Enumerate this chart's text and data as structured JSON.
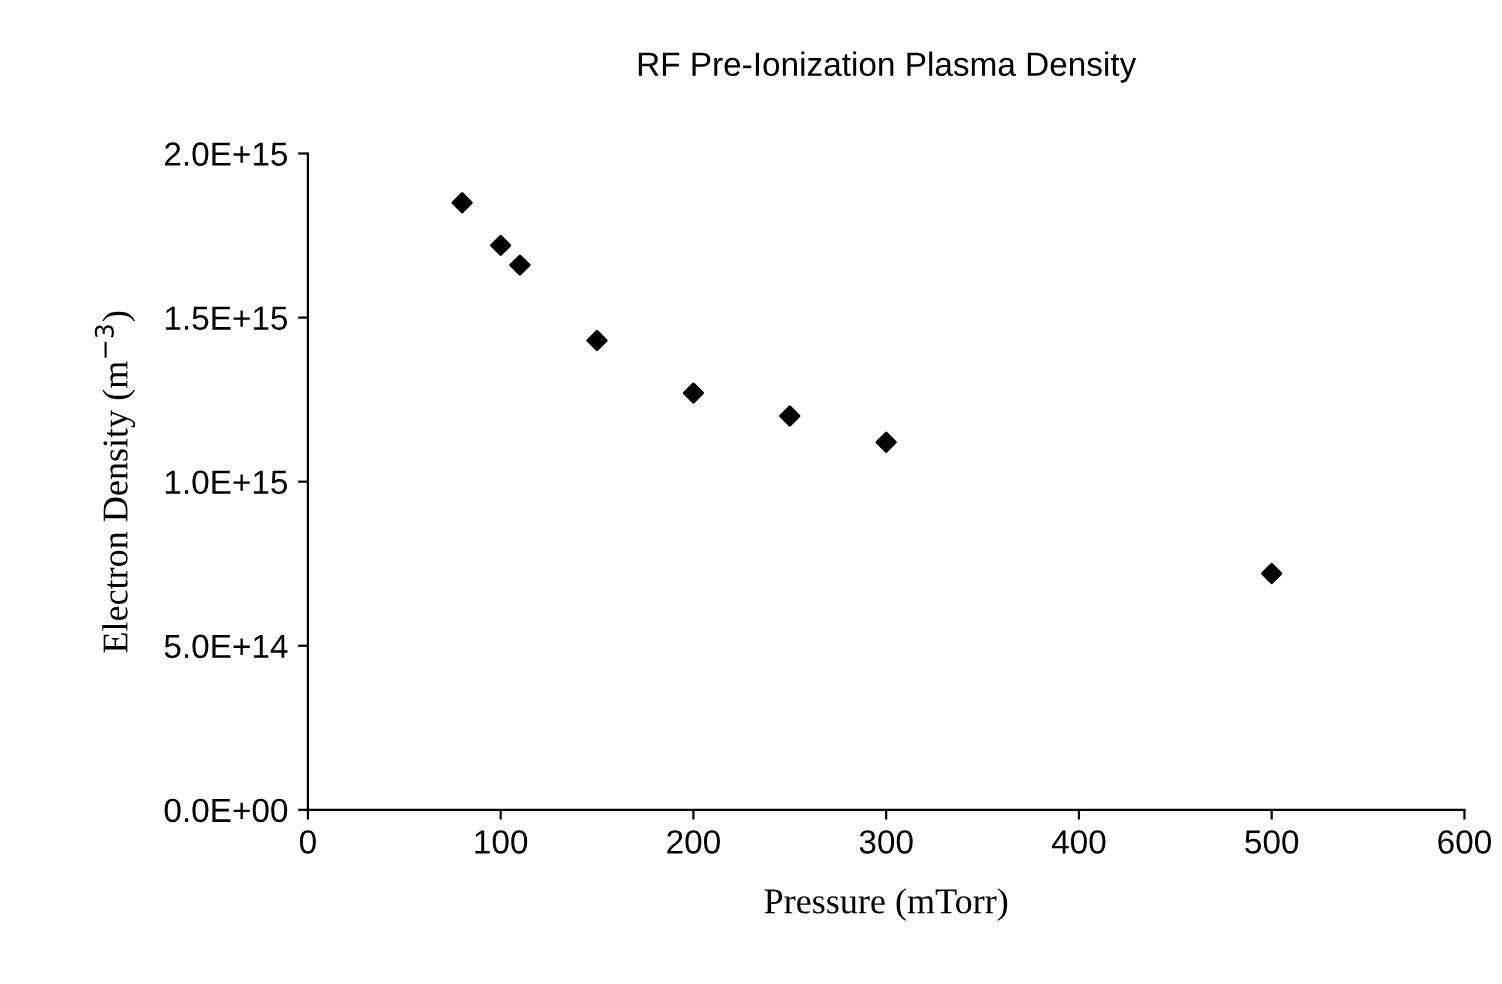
{
  "chart_data": {
    "type": "scatter",
    "title": "RF Pre-Ionization Plasma Density",
    "xlabel": "Pressure (mTorr)",
    "ylabel": "Electron Density (m$^{−3}$)",
    "x": [
      80,
      100,
      110,
      150,
      200,
      250,
      300,
      500
    ],
    "series": [
      {
        "color": "#000000",
        "values": [
          1850000000000000.0,
          1720000000000000.0,
          1660000000000000.0,
          1430000000000000.0,
          1270000000000000.0,
          1200000000000000.0,
          1120000000000000.0,
          720000000000000.0
        ]
      }
    ],
    "xlim": [
      0,
      600
    ],
    "xticks": [
      0,
      100,
      200,
      300,
      400,
      500,
      600
    ],
    "ylim": [
      0,
      2000000000000000.0
    ],
    "yticks": [
      {
        "value": 0,
        "label": "0.0E+00"
      },
      {
        "value": 500000000000000.0,
        "label": "5.0E+14"
      },
      {
        "value": 1000000000000000.0,
        "label": "1.0E+15"
      },
      {
        "value": 1500000000000000.0,
        "label": "1.5E+15"
      },
      {
        "value": 2000000000000000.0,
        "label": "2.0E+15"
      }
    ],
    "marker": "diamond",
    "grid": false,
    "legend": false
  }
}
